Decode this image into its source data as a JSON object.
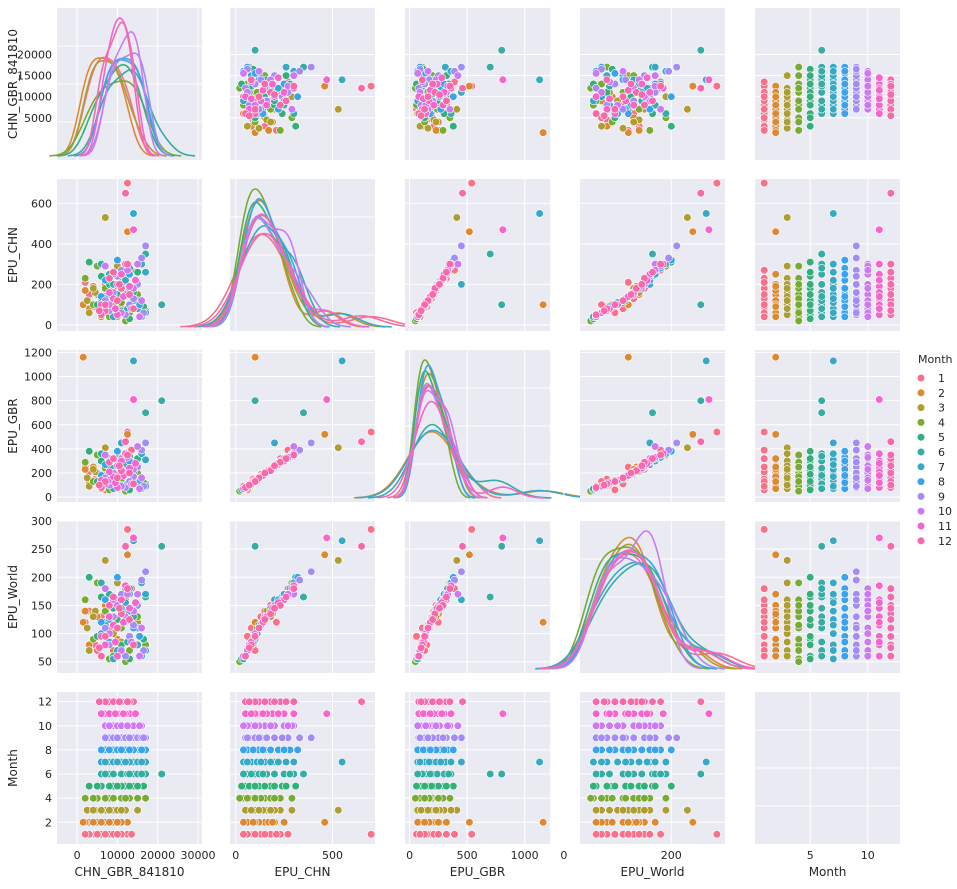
{
  "chart_data": {
    "type": "scatter",
    "subtype": "pairplot",
    "style": "seaborn-darkgrid",
    "grid": true,
    "background_color": "#eaeaf2",
    "diagonal": "kde",
    "variables": [
      "CHN_GBR_841810",
      "EPU_CHN",
      "EPU_GBR",
      "EPU_World",
      "Month"
    ],
    "axis_labels": [
      "CHN_GBR_841810",
      "EPU_CHN",
      "EPU_GBR",
      "EPU_World",
      "Month"
    ],
    "ranges": [
      [
        -5000,
        31000
      ],
      [
        -30,
        720
      ],
      [
        -40,
        1220
      ],
      [
        30,
        300
      ],
      [
        0.2,
        12.8
      ]
    ],
    "ticks": [
      [
        0,
        10000,
        20000,
        30000
      ],
      [
        0,
        500
      ],
      [
        0,
        500,
        1000
      ],
      [
        0,
        200
      ],
      [
        5,
        10
      ]
    ],
    "y_ticks": [
      [
        5000,
        10000,
        15000,
        20000
      ],
      [
        0,
        200,
        400,
        600
      ],
      [
        0,
        200,
        400,
        600,
        800,
        1000,
        1200
      ],
      [
        50,
        100,
        150,
        200,
        250,
        300
      ],
      [
        2,
        4,
        6,
        8,
        10,
        12
      ]
    ],
    "legend": {
      "title": "Month",
      "placement": "right",
      "entries": [
        "1",
        "2",
        "3",
        "4",
        "5",
        "6",
        "7",
        "8",
        "9",
        "10",
        "11",
        "12"
      ]
    },
    "palette": [
      "#f77189",
      "#dc8932",
      "#ae9d31",
      "#77ab31",
      "#33b07a",
      "#36ada4",
      "#38a9c5",
      "#3ba3ec",
      "#a48cf4",
      "#cc7af4",
      "#f565cc",
      "#f66aac"
    ],
    "records": [
      [
        8000,
        80,
        110,
        110,
        1
      ],
      [
        6000,
        130,
        190,
        130,
        1
      ],
      [
        12500,
        700,
        540,
        285,
        1
      ],
      [
        4500,
        90,
        150,
        80,
        1
      ],
      [
        9000,
        180,
        230,
        150,
        1
      ],
      [
        11000,
        230,
        320,
        160,
        1
      ],
      [
        7000,
        60,
        60,
        95,
        1
      ],
      [
        3000,
        150,
        210,
        140,
        1
      ],
      [
        13500,
        270,
        390,
        180,
        1
      ],
      [
        5000,
        100,
        130,
        70,
        1
      ],
      [
        10000,
        40,
        90,
        60,
        1
      ],
      [
        2000,
        210,
        250,
        120,
        1
      ],
      [
        5000,
        150,
        200,
        130,
        2
      ],
      [
        12500,
        460,
        520,
        240,
        2
      ],
      [
        3000,
        80,
        110,
        80,
        2
      ],
      [
        7000,
        200,
        260,
        150,
        2
      ],
      [
        9000,
        60,
        90,
        70,
        2
      ],
      [
        2000,
        170,
        230,
        140,
        2
      ],
      [
        11000,
        120,
        170,
        110,
        2
      ],
      [
        6000,
        40,
        70,
        60,
        2
      ],
      [
        8000,
        250,
        320,
        170,
        2
      ],
      [
        1500,
        100,
        1160,
        120,
        2
      ],
      [
        4000,
        190,
        250,
        135,
        2
      ],
      [
        10000,
        90,
        130,
        90,
        2
      ],
      [
        7000,
        530,
        410,
        230,
        3
      ],
      [
        4500,
        160,
        210,
        140,
        3
      ],
      [
        9000,
        100,
        140,
        100,
        3
      ],
      [
        12000,
        230,
        300,
        160,
        3
      ],
      [
        3000,
        60,
        90,
        70,
        3
      ],
      [
        15000,
        140,
        180,
        120,
        3
      ],
      [
        10000,
        290,
        360,
        190,
        3
      ],
      [
        6000,
        50,
        70,
        60,
        3
      ],
      [
        8000,
        200,
        260,
        150,
        3
      ],
      [
        2500,
        120,
        160,
        110,
        3
      ],
      [
        11000,
        80,
        100,
        85,
        3
      ],
      [
        4000,
        180,
        230,
        130,
        3
      ],
      [
        17000,
        70,
        110,
        80,
        4
      ],
      [
        15000,
        150,
        200,
        130,
        4
      ],
      [
        8000,
        40,
        60,
        55,
        4
      ],
      [
        2000,
        230,
        290,
        160,
        4
      ],
      [
        11000,
        110,
        150,
        110,
        4
      ],
      [
        5000,
        290,
        350,
        190,
        4
      ],
      [
        13000,
        60,
        90,
        70,
        4
      ],
      [
        7000,
        180,
        240,
        140,
        4
      ],
      [
        12000,
        20,
        50,
        50,
        4
      ],
      [
        9000,
        130,
        170,
        115,
        4
      ],
      [
        4000,
        100,
        130,
        90,
        4
      ],
      [
        15000,
        200,
        250,
        150,
        4
      ],
      [
        16500,
        90,
        120,
        90,
        5
      ],
      [
        12000,
        180,
        220,
        140,
        5
      ],
      [
        9000,
        50,
        70,
        60,
        5
      ],
      [
        6000,
        240,
        300,
        165,
        5
      ],
      [
        14000,
        120,
        160,
        115,
        5
      ],
      [
        3000,
        310,
        380,
        200,
        5
      ],
      [
        11000,
        70,
        100,
        80,
        5
      ],
      [
        8000,
        200,
        250,
        150,
        5
      ],
      [
        13000,
        30,
        60,
        55,
        5
      ],
      [
        10000,
        150,
        190,
        125,
        5
      ],
      [
        5000,
        100,
        130,
        95,
        5
      ],
      [
        15000,
        260,
        320,
        170,
        5
      ],
      [
        21000,
        100,
        800,
        255,
        6
      ],
      [
        17000,
        350,
        700,
        165,
        6
      ],
      [
        14000,
        160,
        200,
        130,
        6
      ],
      [
        11000,
        60,
        90,
        70,
        6
      ],
      [
        8000,
        250,
        300,
        170,
        6
      ],
      [
        15000,
        120,
        150,
        110,
        6
      ],
      [
        6000,
        300,
        360,
        190,
        6
      ],
      [
        12500,
        80,
        110,
        85,
        6
      ],
      [
        9000,
        200,
        240,
        145,
        6
      ],
      [
        16000,
        40,
        70,
        60,
        6
      ],
      [
        7000,
        140,
        180,
        120,
        6
      ],
      [
        13000,
        280,
        340,
        180,
        6
      ],
      [
        14000,
        550,
        1130,
        265,
        7
      ],
      [
        11000,
        200,
        450,
        160,
        7
      ],
      [
        15000,
        80,
        110,
        80,
        7
      ],
      [
        8000,
        150,
        190,
        125,
        7
      ],
      [
        17000,
        260,
        310,
        170,
        7
      ],
      [
        9000,
        40,
        70,
        55,
        7
      ],
      [
        13000,
        180,
        230,
        140,
        7
      ],
      [
        6000,
        110,
        140,
        100,
        7
      ],
      [
        16000,
        300,
        360,
        190,
        7
      ],
      [
        10000,
        60,
        90,
        70,
        7
      ],
      [
        12000,
        220,
        270,
        155,
        7
      ],
      [
        7000,
        130,
        170,
        115,
        7
      ],
      [
        15500,
        100,
        140,
        95,
        8
      ],
      [
        12000,
        280,
        330,
        180,
        8
      ],
      [
        9000,
        150,
        200,
        130,
        8
      ],
      [
        17000,
        60,
        90,
        70,
        8
      ],
      [
        7000,
        220,
        270,
        160,
        8
      ],
      [
        14000,
        120,
        160,
        110,
        8
      ],
      [
        10000,
        320,
        380,
        200,
        8
      ],
      [
        16000,
        40,
        70,
        60,
        8
      ],
      [
        11000,
        180,
        230,
        145,
        8
      ],
      [
        8000,
        90,
        120,
        85,
        8
      ],
      [
        13000,
        250,
        300,
        170,
        8
      ],
      [
        6000,
        140,
        180,
        120,
        8
      ],
      [
        17000,
        390,
        450,
        210,
        9
      ],
      [
        14000,
        130,
        170,
        115,
        9
      ],
      [
        11000,
        270,
        320,
        170,
        9
      ],
      [
        8000,
        70,
        100,
        80,
        9
      ],
      [
        15000,
        200,
        250,
        150,
        9
      ],
      [
        12000,
        50,
        80,
        60,
        9
      ],
      [
        16000,
        330,
        390,
        195,
        9
      ],
      [
        9000,
        160,
        200,
        130,
        9
      ],
      [
        13000,
        100,
        130,
        95,
        9
      ],
      [
        10000,
        240,
        290,
        160,
        9
      ],
      [
        7000,
        120,
        160,
        110,
        9
      ],
      [
        16500,
        60,
        90,
        70,
        9
      ],
      [
        15000,
        300,
        420,
        170,
        10
      ],
      [
        12000,
        150,
        200,
        130,
        10
      ],
      [
        9000,
        250,
        320,
        160,
        10
      ],
      [
        13500,
        80,
        110,
        85,
        10
      ],
      [
        10000,
        200,
        260,
        150,
        10
      ],
      [
        16000,
        120,
        160,
        110,
        10
      ],
      [
        7000,
        290,
        350,
        180,
        10
      ],
      [
        11000,
        60,
        90,
        70,
        10
      ],
      [
        14000,
        180,
        230,
        140,
        10
      ],
      [
        8000,
        100,
        140,
        100,
        10
      ],
      [
        12500,
        270,
        330,
        170,
        10
      ],
      [
        15500,
        40,
        70,
        60,
        10
      ],
      [
        14000,
        470,
        810,
        270,
        11
      ],
      [
        9000,
        130,
        170,
        115,
        11
      ],
      [
        11000,
        250,
        300,
        160,
        11
      ],
      [
        7000,
        70,
        110,
        80,
        11
      ],
      [
        13000,
        190,
        240,
        145,
        11
      ],
      [
        10000,
        50,
        80,
        60,
        11
      ],
      [
        12000,
        300,
        360,
        185,
        11
      ],
      [
        8000,
        160,
        210,
        130,
        11
      ],
      [
        6000,
        100,
        140,
        95,
        11
      ],
      [
        14500,
        220,
        280,
        155,
        11
      ],
      [
        9500,
        80,
        120,
        85,
        11
      ],
      [
        11500,
        140,
        180,
        120,
        11
      ],
      [
        12000,
        650,
        460,
        255,
        12
      ],
      [
        10000,
        120,
        160,
        110,
        12
      ],
      [
        8000,
        230,
        290,
        150,
        12
      ],
      [
        14000,
        80,
        110,
        80,
        12
      ],
      [
        11000,
        180,
        220,
        135,
        12
      ],
      [
        6000,
        50,
        80,
        60,
        12
      ],
      [
        9000,
        260,
        320,
        165,
        12
      ],
      [
        13000,
        150,
        200,
        125,
        12
      ],
      [
        7000,
        100,
        130,
        95,
        12
      ],
      [
        12500,
        300,
        350,
        180,
        12
      ],
      [
        5500,
        70,
        100,
        75,
        12
      ],
      [
        10500,
        200,
        260,
        145,
        12
      ]
    ]
  }
}
